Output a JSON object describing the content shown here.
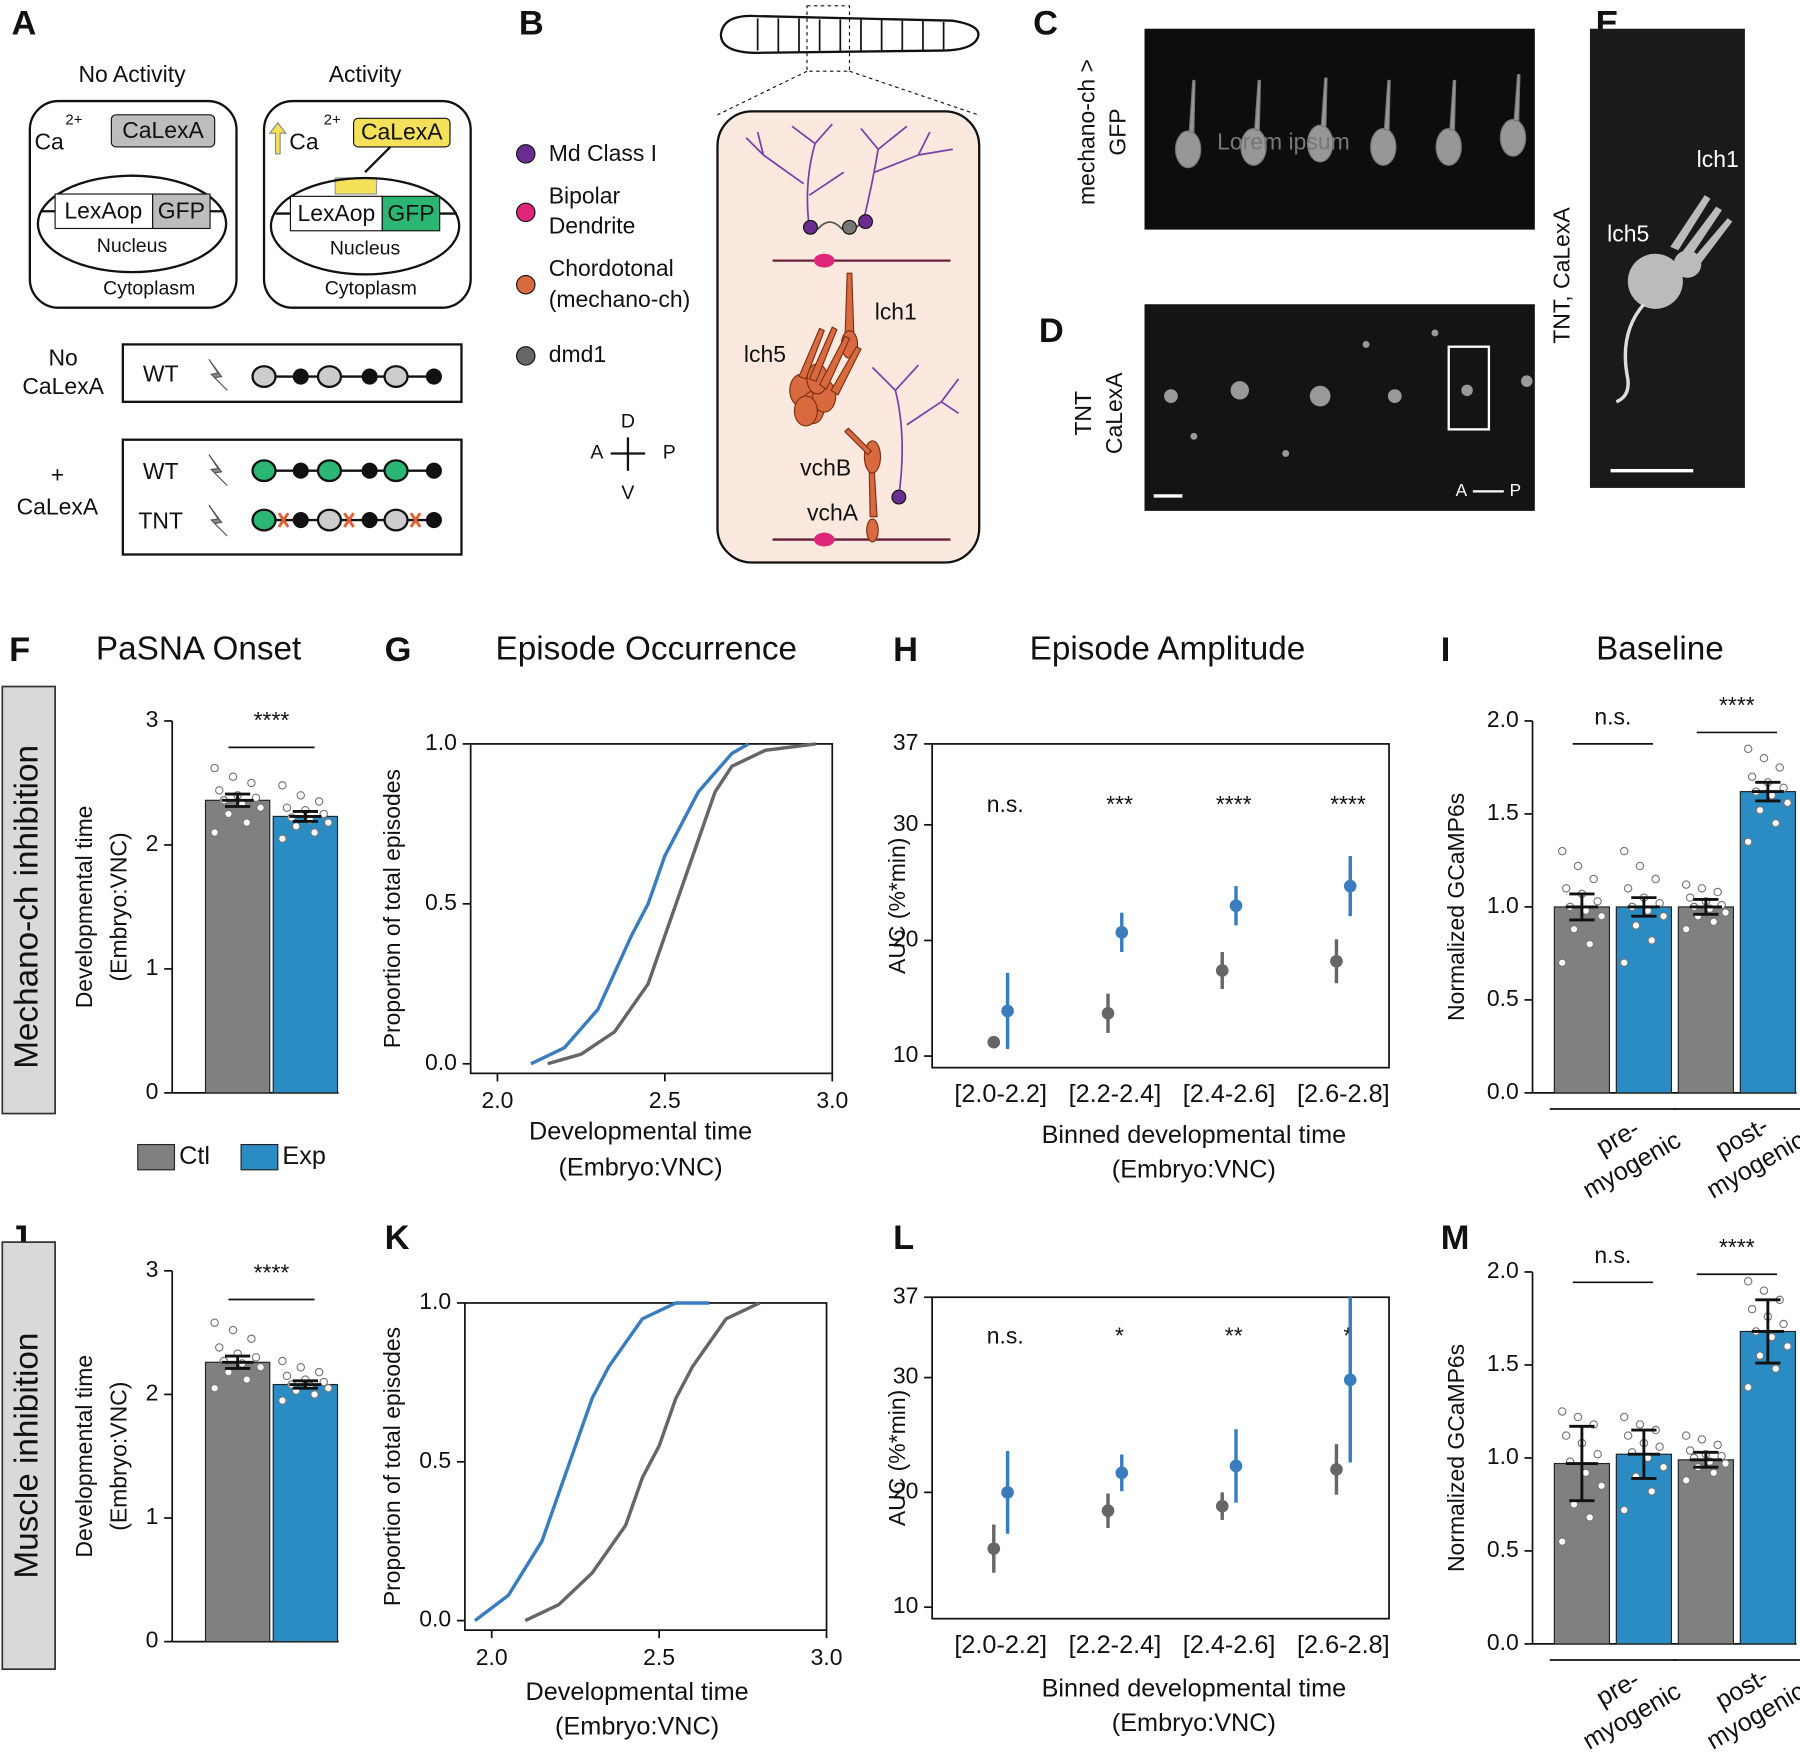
{
  "panel_labels": [
    "A",
    "B",
    "C",
    "D",
    "E",
    "F",
    "G",
    "H",
    "I",
    "J",
    "K",
    "L",
    "M"
  ],
  "row_labels": [
    "Mechano-ch inhibition",
    "Muscle inhibition"
  ],
  "panel_a": {
    "no_activity": "No Activity",
    "activity": "Activity",
    "calexa": "CaLexA",
    "ca": "Ca",
    "charge": "2+",
    "lexaop": "LexAop",
    "gfp": "GFP",
    "nucleus": "Nucleus",
    "cytoplasm": "Cytoplasm",
    "no_calexa": [
      "No",
      "CaLexA"
    ],
    "plus_calexa": [
      "+",
      "CaLexA"
    ],
    "wt": "WT",
    "tnt": "TNT"
  },
  "panel_b": {
    "legend": [
      [
        "Md Class I"
      ],
      [
        "Bipolar",
        "Dendrite"
      ],
      [
        "Chordotonal",
        "(mechano-ch)"
      ],
      [
        "dmd1"
      ]
    ],
    "compass": {
      "d": "D",
      "a": "A",
      "p": "P",
      "v": "V"
    },
    "neurons": [
      "lch1",
      "lch5",
      "vchB",
      "vchA"
    ]
  },
  "panel_c": {
    "label": [
      "mechano-ch >",
      "GFP"
    ],
    "watermark": "Lorem ipsum"
  },
  "panel_d": {
    "label": [
      "TNT",
      "CaLexA"
    ],
    "a": "A",
    "p": "P"
  },
  "panel_e": {
    "label": "TNT, CaLexA",
    "cells": [
      "lch1",
      "lch5"
    ]
  },
  "chart_data": [
    {
      "type": "bar",
      "title": "PaSNA Onset",
      "ylabel": [
        "Developmental time",
        "(Embryo:VNC)"
      ],
      "ylim": [
        0,
        3
      ],
      "yticks": [
        0,
        1,
        2,
        3
      ],
      "series": [
        {
          "name": "Ctl",
          "color": "#808080",
          "values": [
            2.36
          ],
          "errors": [
            0.05
          ],
          "points": [
            [
              2.1,
              2.18,
              2.25,
              2.3,
              2.33,
              2.36,
              2.38,
              2.4,
              2.44,
              2.5,
              2.55,
              2.62
            ]
          ]
        },
        {
          "name": "Exp",
          "color": "#2b8cc4",
          "values": [
            2.23
          ],
          "errors": [
            0.04
          ],
          "points": [
            [
              2.05,
              2.1,
              2.15,
              2.18,
              2.2,
              2.22,
              2.25,
              2.28,
              2.3,
              2.35,
              2.4,
              2.48
            ]
          ]
        }
      ],
      "significance": [
        "****"
      ]
    },
    {
      "type": "line",
      "title": "Episode Occurrence",
      "xlabel": [
        "Developmental time",
        "(Embryo:VNC)"
      ],
      "ylabel": "Proportion of total episodes",
      "xlim": [
        1.92,
        3.0
      ],
      "xticks": [
        {
          "value": 2,
          "label": "2.0"
        },
        {
          "value": 2.5,
          "label": "2.5"
        },
        {
          "value": 3,
          "label": "3.0"
        }
      ],
      "ylim": [
        -0.03,
        1.0
      ],
      "yticks": [
        {
          "value": 0,
          "label": "0.0"
        },
        {
          "value": 0.5,
          "label": "0.5"
        },
        {
          "value": 1,
          "label": "1.0"
        }
      ],
      "series": [
        {
          "color": "#666666",
          "x": [
            2.15,
            2.25,
            2.35,
            2.45,
            2.5,
            2.55,
            2.6,
            2.65,
            2.7,
            2.8,
            2.95
          ],
          "values": [
            0,
            0.03,
            0.1,
            0.25,
            0.4,
            0.55,
            0.7,
            0.85,
            0.93,
            0.98,
            1.0
          ]
        },
        {
          "color": "#3a7dbf",
          "x": [
            2.1,
            2.2,
            2.3,
            2.4,
            2.45,
            2.5,
            2.6,
            2.7,
            2.75
          ],
          "values": [
            0,
            0.05,
            0.17,
            0.4,
            0.5,
            0.65,
            0.85,
            0.97,
            1.0
          ]
        }
      ]
    },
    {
      "type": "point",
      "title": "Episode Amplitude",
      "xlabel": [
        "Binned developmental time",
        "(Embryo:VNC)"
      ],
      "ylabel": "AUC (%*min)",
      "categories": [
        "[2.0-2.2]",
        "[2.2-2.4]",
        "[2.4-2.6]",
        "[2.6-2.8]"
      ],
      "ylim": [
        9,
        37
      ],
      "yticks": [
        10,
        20,
        30,
        37
      ],
      "series": [
        {
          "color": "#666666",
          "values": [
            11.2,
            13.7,
            17.4,
            18.2
          ],
          "errors": [
            null,
            1.7,
            1.6,
            1.9
          ]
        },
        {
          "color": "#3a7dbf",
          "values": [
            13.9,
            20.7,
            23.0,
            24.7
          ],
          "errors": [
            3.3,
            1.7,
            1.7,
            2.6
          ]
        }
      ],
      "significance": [
        "n.s.",
        "***",
        "****",
        "****"
      ]
    },
    {
      "type": "bar",
      "title": "Baseline",
      "ylabel": "Normalized GCaMP6s",
      "groups": [
        [
          "pre-",
          "myogenic"
        ],
        [
          "post-",
          "myogenic"
        ]
      ],
      "ylim": [
        0,
        2
      ],
      "yticks": [
        {
          "value": 0,
          "label": "0.0"
        },
        {
          "value": 0.5,
          "label": "0.5"
        },
        {
          "value": 1,
          "label": "1.0"
        },
        {
          "value": 1.5,
          "label": "1.5"
        },
        {
          "value": 2,
          "label": "2.0"
        }
      ],
      "series": [
        {
          "color": "#808080",
          "values": [
            1.0,
            1.0
          ],
          "errors": [
            0.07,
            0.04
          ],
          "points": [
            [
              0.7,
              0.8,
              0.88,
              0.95,
              0.98,
              1.0,
              1.03,
              1.07,
              1.1,
              1.15,
              1.22,
              1.3
            ],
            [
              0.88,
              0.92,
              0.95,
              0.97,
              0.99,
              1.0,
              1.01,
              1.03,
              1.05,
              1.08,
              1.1,
              1.12
            ]
          ]
        },
        {
          "color": "#2b8cc4",
          "values": [
            1.0,
            1.62
          ],
          "errors": [
            0.05,
            0.05
          ],
          "points": [
            [
              0.7,
              0.82,
              0.9,
              0.95,
              0.98,
              1.0,
              1.02,
              1.05,
              1.1,
              1.15,
              1.22,
              1.3
            ],
            [
              1.35,
              1.45,
              1.52,
              1.56,
              1.6,
              1.62,
              1.64,
              1.67,
              1.7,
              1.75,
              1.8,
              1.85
            ]
          ]
        }
      ],
      "significance": [
        "n.s.",
        "****"
      ]
    },
    {
      "type": "bar",
      "ylabel": [
        "Developmental time",
        "(Embryo:VNC)"
      ],
      "ylim": [
        0,
        3
      ],
      "yticks": [
        0,
        1,
        2,
        3
      ],
      "series": [
        {
          "color": "#808080",
          "values": [
            2.26
          ],
          "errors": [
            0.05
          ],
          "points": [
            [
              2.05,
              2.12,
              2.18,
              2.22,
              2.25,
              2.27,
              2.3,
              2.33,
              2.38,
              2.45,
              2.52,
              2.58
            ]
          ]
        },
        {
          "color": "#2b8cc4",
          "values": [
            2.08
          ],
          "errors": [
            0.03
          ],
          "points": [
            [
              1.95,
              2.0,
              2.03,
              2.05,
              2.07,
              2.08,
              2.1,
              2.12,
              2.15,
              2.18,
              2.22,
              2.27
            ]
          ]
        }
      ],
      "significance": [
        "****"
      ]
    },
    {
      "type": "line",
      "xlabel": [
        "Developmental time",
        "(Embryo:VNC)"
      ],
      "ylabel": "Proportion of total episodes",
      "xlim": [
        1.92,
        3.0
      ],
      "xticks": [
        {
          "value": 2,
          "label": "2.0"
        },
        {
          "value": 2.5,
          "label": "2.5"
        },
        {
          "value": 3,
          "label": "3.0"
        }
      ],
      "ylim": [
        -0.03,
        1.0
      ],
      "yticks": [
        {
          "value": 0,
          "label": "0.0"
        },
        {
          "value": 0.5,
          "label": "0.5"
        },
        {
          "value": 1,
          "label": "1.0"
        }
      ],
      "series": [
        {
          "color": "#666666",
          "x": [
            2.1,
            2.2,
            2.3,
            2.4,
            2.45,
            2.5,
            2.55,
            2.6,
            2.7,
            2.8
          ],
          "values": [
            0,
            0.05,
            0.15,
            0.3,
            0.45,
            0.55,
            0.7,
            0.8,
            0.95,
            1.0
          ]
        },
        {
          "color": "#3a7dbf",
          "x": [
            1.95,
            2.05,
            2.15,
            2.2,
            2.25,
            2.3,
            2.35,
            2.45,
            2.55,
            2.65
          ],
          "values": [
            0,
            0.08,
            0.25,
            0.4,
            0.55,
            0.7,
            0.8,
            0.95,
            1.0,
            1.0
          ]
        }
      ]
    },
    {
      "type": "point",
      "xlabel": [
        "Binned developmental time",
        "(Embryo:VNC)"
      ],
      "ylabel": "AUC (%*min)",
      "categories": [
        "[2.0-2.2]",
        "[2.2-2.4]",
        "[2.4-2.6]",
        "[2.6-2.8]"
      ],
      "ylim": [
        9,
        37
      ],
      "yticks": [
        10,
        20,
        30,
        37
      ],
      "series": [
        {
          "color": "#666666",
          "values": [
            15.1,
            18.4,
            18.8,
            22.0
          ],
          "errors": [
            2.1,
            1.5,
            1.2,
            2.2
          ]
        },
        {
          "color": "#3a7dbf",
          "values": [
            20.0,
            21.7,
            22.3,
            29.8
          ],
          "errors": [
            3.6,
            1.6,
            3.2,
            7.2
          ]
        }
      ],
      "significance": [
        "n.s.",
        "*",
        "**",
        "*"
      ]
    },
    {
      "type": "bar",
      "ylabel": "Normalized GCaMP6s",
      "groups": [
        [
          "pre-",
          "myogenic"
        ],
        [
          "post-",
          "myogenic"
        ]
      ],
      "ylim": [
        0,
        2
      ],
      "yticks": [
        {
          "value": 0,
          "label": "0.0"
        },
        {
          "value": 0.5,
          "label": "0.5"
        },
        {
          "value": 1,
          "label": "1.0"
        },
        {
          "value": 1.5,
          "label": "1.5"
        },
        {
          "value": 2,
          "label": "2.0"
        }
      ],
      "series": [
        {
          "color": "#808080",
          "values": [
            0.97,
            0.99
          ],
          "errors": [
            0.2,
            0.04
          ],
          "points": [
            [
              0.55,
              0.68,
              0.75,
              0.85,
              0.92,
              0.98,
              1.02,
              1.08,
              1.12,
              1.18,
              1.22,
              1.25
            ],
            [
              0.88,
              0.92,
              0.95,
              0.97,
              0.98,
              1.0,
              1.01,
              1.02,
              1.04,
              1.07,
              1.1,
              1.12
            ]
          ]
        },
        {
          "color": "#2b8cc4",
          "values": [
            1.02,
            1.68
          ],
          "errors": [
            0.13,
            0.17
          ],
          "points": [
            [
              0.72,
              0.82,
              0.9,
              0.95,
              1.0,
              1.03,
              1.06,
              1.08,
              1.12,
              1.15,
              1.18,
              1.22
            ],
            [
              1.38,
              1.48,
              1.55,
              1.6,
              1.65,
              1.68,
              1.72,
              1.76,
              1.8,
              1.85,
              1.9,
              1.95
            ]
          ]
        }
      ],
      "significance": [
        "n.s.",
        "****"
      ]
    }
  ]
}
